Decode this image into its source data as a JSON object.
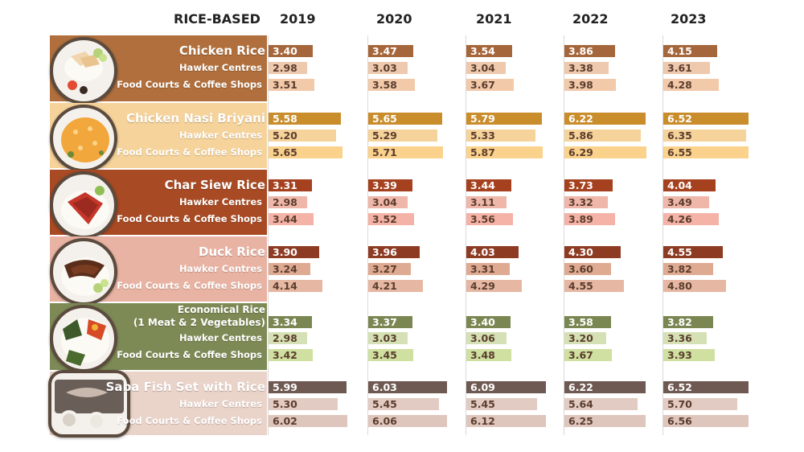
{
  "header": {
    "category": "RICE-BASED",
    "years": [
      "2019",
      "2020",
      "2021",
      "2022",
      "2023"
    ]
  },
  "chart_data": {
    "type": "bar",
    "title": "",
    "years": [
      "2019",
      "2020",
      "2021",
      "2022",
      "2023"
    ],
    "row_labels": [
      "Hawker Centres",
      "Food Courts & Coffee Shops"
    ],
    "groups": [
      {
        "name": "Chicken Rice",
        "icon": "chicken-rice-plate-icon",
        "band_color": "#b06f3c",
        "colors": [
          "#a5663b",
          "#eec9ad",
          "#f2c9a9"
        ],
        "rows": [
          {
            "label": "Chicken Rice",
            "values": [
              3.4,
              3.47,
              3.54,
              3.86,
              4.15
            ]
          },
          {
            "label": "Hawker Centres",
            "values": [
              2.98,
              3.03,
              3.04,
              3.38,
              3.61
            ]
          },
          {
            "label": "Food Courts & Coffee Shops",
            "values": [
              3.51,
              3.58,
              3.67,
              3.98,
              4.28
            ]
          }
        ]
      },
      {
        "name": "Chicken Nasi Briyani",
        "icon": "briyani-plate-icon",
        "band_color": "#f6d39a",
        "colors": [
          "#c98d2c",
          "#f5d39a",
          "#fbd28c"
        ],
        "rows": [
          {
            "label": "Chicken Nasi Briyani",
            "values": [
              5.58,
              5.65,
              5.79,
              6.22,
              6.52
            ]
          },
          {
            "label": "Hawker Centres",
            "values": [
              5.2,
              5.29,
              5.33,
              5.86,
              6.35
            ]
          },
          {
            "label": "Food Courts & Coffee Shops",
            "values": [
              5.65,
              5.71,
              5.87,
              6.29,
              6.55
            ]
          }
        ]
      },
      {
        "name": "Char Siew Rice",
        "icon": "char-siew-plate-icon",
        "band_color": "#a84a23",
        "colors": [
          "#a5411f",
          "#efb6aa",
          "#f5b2a6"
        ],
        "rows": [
          {
            "label": "Char Siew Rice",
            "values": [
              3.31,
              3.39,
              3.44,
              3.73,
              4.04
            ]
          },
          {
            "label": "Hawker Centres",
            "values": [
              2.98,
              3.04,
              3.11,
              3.32,
              3.49
            ]
          },
          {
            "label": "Food Courts & Coffee Shops",
            "values": [
              3.44,
              3.52,
              3.56,
              3.89,
              4.26
            ]
          }
        ]
      },
      {
        "name": "Duck Rice",
        "icon": "duck-rice-plate-icon",
        "band_color": "#e9b3a3",
        "colors": [
          "#8e3b24",
          "#dfaa92",
          "#e6b7a2"
        ],
        "rows": [
          {
            "label": "Duck Rice",
            "values": [
              3.9,
              3.96,
              4.03,
              4.3,
              4.55
            ]
          },
          {
            "label": "Hawker Centres",
            "values": [
              3.24,
              3.27,
              3.31,
              3.6,
              3.82
            ]
          },
          {
            "label": "Food Courts & Coffee Shops",
            "values": [
              4.14,
              4.21,
              4.29,
              4.55,
              4.8
            ]
          }
        ]
      },
      {
        "name_lines": [
          "Economical Rice",
          "(1 Meat & 2 Vegetables)"
        ],
        "icon": "economical-rice-plate-icon",
        "band_color": "#7d8a55",
        "colors": [
          "#7a8753",
          "#d5e1b4",
          "#cfe0a0"
        ],
        "rows": [
          {
            "label": "Economical Rice (1 Meat & 2 Vegetables)",
            "values": [
              3.34,
              3.37,
              3.4,
              3.58,
              3.82
            ]
          },
          {
            "label": "Hawker Centres",
            "values": [
              2.98,
              3.03,
              3.06,
              3.2,
              3.36
            ]
          },
          {
            "label": "Food Courts & Coffee Shops",
            "values": [
              3.42,
              3.45,
              3.48,
              3.67,
              3.93
            ]
          }
        ]
      },
      {
        "name": "Saba Fish Set with Rice",
        "icon": "saba-fish-set-icon",
        "band_color": "#ead3c9",
        "colors": [
          "#6e5a52",
          "#e2cbc2",
          "#dfc6bd"
        ],
        "rows": [
          {
            "label": "Saba Fish Set with Rice",
            "values": [
              5.99,
              6.03,
              6.09,
              6.22,
              6.52
            ]
          },
          {
            "label": "Hawker Centres",
            "values": [
              5.3,
              5.45,
              5.45,
              5.64,
              5.7
            ]
          },
          {
            "label": "Food Courts & Coffee Shops",
            "values": [
              6.02,
              6.06,
              6.12,
              6.25,
              6.56
            ]
          }
        ]
      }
    ]
  }
}
